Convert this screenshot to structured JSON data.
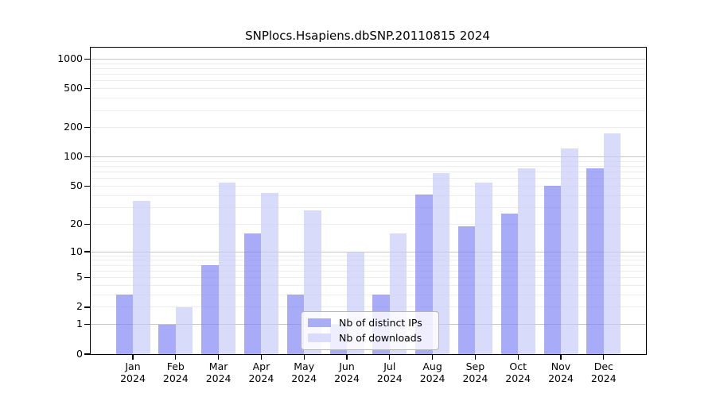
{
  "title": "SNPlocs.Hsapiens.dbSNP.20110815 2024",
  "chart_data": {
    "type": "bar",
    "title": "SNPlocs.Hsapiens.dbSNP.20110815 2024",
    "categories": [
      "Jan 2024",
      "Feb 2024",
      "Mar 2024",
      "Apr 2024",
      "May 2024",
      "Jun 2024",
      "Jul 2024",
      "Aug 2024",
      "Sep 2024",
      "Oct 2024",
      "Nov 2024",
      "Dec 2024"
    ],
    "series": [
      {
        "name": "Nb of distinct IPs",
        "color": "rgba(123,127,243,0.66)",
        "legend_color": "#a9adf5",
        "values": [
          3,
          1,
          7,
          16,
          3,
          1,
          3,
          41,
          19,
          26,
          51,
          76
        ]
      },
      {
        "name": "Nb of downloads",
        "color": "rgba(197,200,249,0.66)",
        "legend_color": "#d9dcfa",
        "values": [
          35,
          2,
          55,
          43,
          28,
          10,
          16,
          68,
          55,
          77,
          122,
          175
        ]
      }
    ],
    "xlabel": "",
    "ylabel": "",
    "yscale": "log1p",
    "ylim": [
      0,
      1310
    ],
    "y_tick_values": [
      1000,
      500,
      200,
      100,
      50,
      20,
      10,
      5,
      2,
      1,
      0
    ],
    "y_tick_labels": [
      "1000",
      "500",
      "200",
      "100",
      "50",
      "20",
      "10",
      "5",
      "2",
      "1",
      "0"
    ],
    "y_major_gridlines": [
      1,
      10,
      100,
      1000
    ],
    "y_minor_gridlines": [
      2,
      3,
      4,
      5,
      6,
      7,
      8,
      9,
      20,
      30,
      40,
      50,
      60,
      70,
      80,
      90,
      200,
      300,
      400,
      500,
      600,
      700,
      800,
      900
    ],
    "grid": true,
    "legend_position": "inside-lower-center"
  },
  "legend": {
    "items": [
      {
        "label": "Nb of distinct IPs",
        "color": "#a9adf5"
      },
      {
        "label": "Nb of downloads",
        "color": "#d9dcfa"
      }
    ]
  }
}
